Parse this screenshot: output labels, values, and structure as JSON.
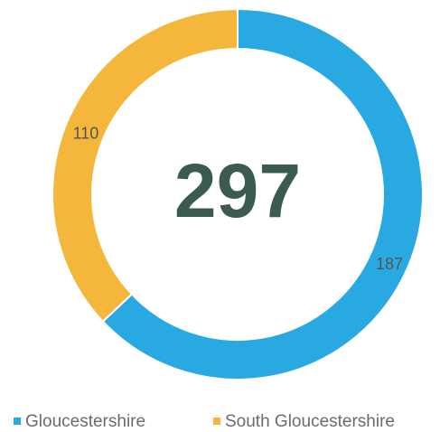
{
  "chart_data": {
    "type": "donut",
    "categories": [
      "Gloucestershire",
      "South Gloucestershire"
    ],
    "values": [
      187,
      110
    ],
    "colors": [
      "#29a9e1",
      "#f4b63b"
    ],
    "total": 297,
    "legend": "bottom"
  }
}
